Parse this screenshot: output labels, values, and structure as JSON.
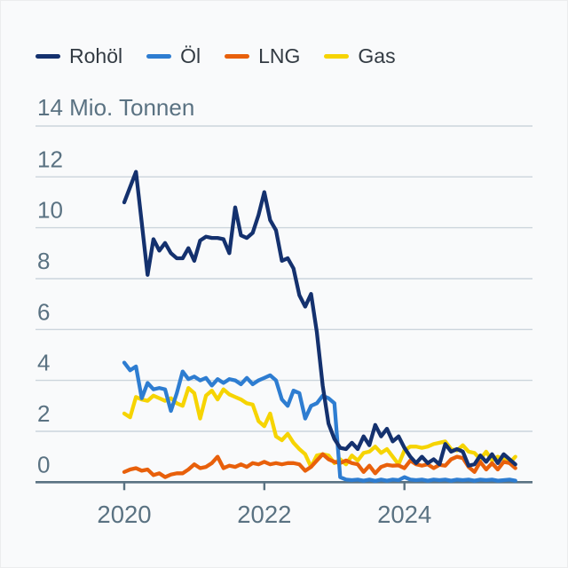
{
  "legend": {
    "items": [
      {
        "label": "Rohöl",
        "color": "#14316e"
      },
      {
        "label": "Öl",
        "color": "#2e7dd1"
      },
      {
        "label": "LNG",
        "color": "#e8600b"
      },
      {
        "label": "Gas",
        "color": "#f6d402"
      }
    ]
  },
  "colors": {
    "background": "#f9fafb",
    "grid": "#ccd5dc",
    "axis": "#5a7282",
    "axis_text": "#5a7282",
    "legend_text": "#333b43"
  },
  "chart_data": {
    "type": "line",
    "title": "",
    "unit_label": "14 Mio. Tonnen",
    "unit": "Mio. Tonnen",
    "frequency": "monthly",
    "x_start": "2020-01",
    "x_end": "2025-08",
    "ylim": [
      0,
      14
    ],
    "y_ticks": [
      0,
      2,
      4,
      6,
      8,
      10,
      12,
      14
    ],
    "y_tick_labels": [
      "12",
      "10",
      "8",
      "6",
      "4",
      "2",
      "0"
    ],
    "x_ticks": [
      "2020",
      "2022",
      "2024"
    ],
    "grid": true,
    "legend_position": "top-left",
    "series": [
      {
        "name": "Rohöl",
        "color": "#14316e",
        "values": [
          11.0,
          11.6,
          12.2,
          10.2,
          8.15,
          9.55,
          9.1,
          9.4,
          9.0,
          8.8,
          8.8,
          9.2,
          8.7,
          9.5,
          9.65,
          9.6,
          9.6,
          9.55,
          9.0,
          10.8,
          9.7,
          9.6,
          9.8,
          10.5,
          11.4,
          10.3,
          9.9,
          8.7,
          8.8,
          8.4,
          7.35,
          6.9,
          7.4,
          5.9,
          3.8,
          2.3,
          1.7,
          1.35,
          1.3,
          1.55,
          1.3,
          1.8,
          1.45,
          2.25,
          1.8,
          2.1,
          1.6,
          1.8,
          1.35,
          1.0,
          0.75,
          1.0,
          0.75,
          0.9,
          0.7,
          1.5,
          1.2,
          1.3,
          1.2,
          0.65,
          0.7,
          1.05,
          0.8,
          1.1,
          0.75,
          1.1,
          0.9,
          0.7
        ]
      },
      {
        "name": "Öl",
        "color": "#2e7dd1",
        "values": [
          4.7,
          4.4,
          4.55,
          3.3,
          3.9,
          3.65,
          3.7,
          3.65,
          2.8,
          3.5,
          4.35,
          4.05,
          4.15,
          4.0,
          4.1,
          3.8,
          4.05,
          3.9,
          4.05,
          4.0,
          3.85,
          4.1,
          3.85,
          4.0,
          4.1,
          4.2,
          4.0,
          3.25,
          3.0,
          3.6,
          3.5,
          2.5,
          3.0,
          3.1,
          3.4,
          3.3,
          3.1,
          0.2,
          0.1,
          0.08,
          0.1,
          0.06,
          0.1,
          0.05,
          0.1,
          0.06,
          0.1,
          0.08,
          0.2,
          0.1,
          0.08,
          0.1,
          0.06,
          0.1,
          0.08,
          0.1,
          0.06,
          0.1,
          0.08,
          0.1,
          0.06,
          0.1,
          0.08,
          0.1,
          0.06,
          0.08,
          0.1,
          0.06
        ]
      },
      {
        "name": "LNG",
        "color": "#e8600b",
        "values": [
          0.4,
          0.5,
          0.55,
          0.45,
          0.5,
          0.28,
          0.35,
          0.2,
          0.3,
          0.35,
          0.35,
          0.5,
          0.7,
          0.55,
          0.6,
          0.75,
          1.0,
          0.55,
          0.65,
          0.6,
          0.7,
          0.6,
          0.75,
          0.7,
          0.8,
          0.7,
          0.75,
          0.7,
          0.75,
          0.75,
          0.7,
          0.45,
          0.6,
          0.85,
          1.1,
          0.9,
          0.8,
          0.75,
          0.85,
          0.75,
          0.7,
          0.4,
          0.65,
          0.35,
          0.6,
          0.68,
          0.65,
          0.66,
          0.55,
          0.85,
          0.7,
          0.65,
          0.7,
          0.55,
          0.68,
          0.65,
          0.9,
          1.0,
          0.95,
          0.6,
          0.4,
          0.8,
          0.5,
          0.75,
          0.5,
          0.8,
          0.75,
          0.55
        ]
      },
      {
        "name": "Gas",
        "color": "#f6d402",
        "values": [
          2.7,
          2.55,
          3.35,
          3.25,
          3.2,
          3.4,
          3.3,
          3.2,
          3.3,
          3.1,
          3.0,
          3.7,
          3.5,
          2.5,
          3.4,
          3.6,
          3.25,
          3.65,
          3.45,
          3.35,
          3.25,
          3.1,
          3.05,
          2.4,
          2.2,
          2.7,
          1.8,
          1.65,
          1.9,
          1.55,
          1.3,
          1.1,
          0.6,
          1.05,
          1.1,
          1.05,
          0.75,
          0.9,
          0.7,
          1.05,
          0.85,
          1.15,
          1.2,
          1.4,
          1.15,
          1.3,
          1.0,
          0.7,
          1.25,
          1.4,
          1.4,
          1.35,
          1.4,
          1.5,
          1.55,
          1.6,
          1.3,
          1.25,
          1.45,
          1.2,
          1.15,
          0.9,
          1.2,
          0.85,
          1.0,
          0.9,
          0.75,
          1.0
        ]
      }
    ]
  }
}
